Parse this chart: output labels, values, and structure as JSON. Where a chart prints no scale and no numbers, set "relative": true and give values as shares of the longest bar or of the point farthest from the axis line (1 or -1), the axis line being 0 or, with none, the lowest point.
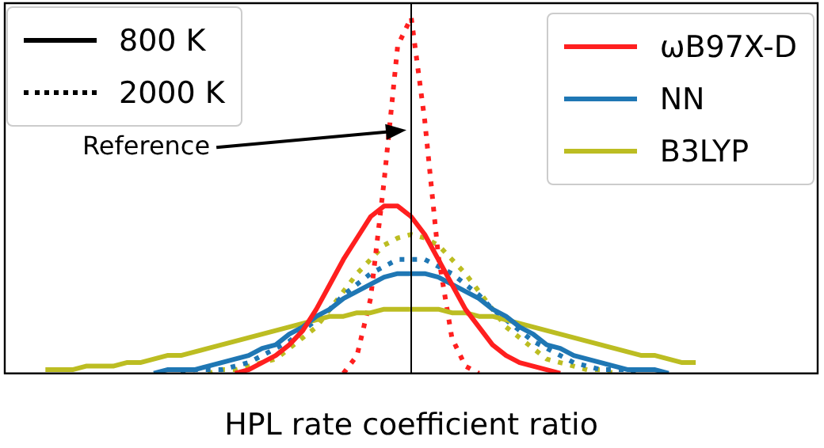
{
  "chart_data": {
    "type": "line",
    "xlabel": "HPL rate coefficient ratio",
    "relative": true,
    "legend": "top right",
    "grid": false,
    "marker": "none",
    "categories": [
      null,
      null,
      null,
      null,
      null,
      null,
      null,
      null,
      null,
      null,
      null,
      null,
      null,
      null,
      null,
      null,
      null,
      null,
      null,
      null,
      null,
      null,
      null,
      null,
      null,
      null,
      null,
      null,
      null,
      null,
      null,
      null,
      null,
      null,
      null,
      null,
      null,
      null,
      null,
      null,
      null,
      null,
      null,
      null,
      null,
      null,
      null,
      null,
      null,
      null,
      null,
      null,
      null,
      null,
      null,
      null,
      null,
      null,
      null,
      null,
      null
    ],
    "annotations": [
      "Reference"
    ],
    "series": [
      {
        "name": "ωB97X-D",
        "color": "#ff1f1f",
        "line_style": "solid",
        "values": [
          null,
          null,
          null,
          null,
          null,
          null,
          null,
          null,
          null,
          null,
          null,
          null,
          null,
          null,
          null,
          null,
          null,
          0,
          0.01,
          0.03,
          0.05,
          0.08,
          0.12,
          0.18,
          0.25,
          0.32,
          0.38,
          0.44,
          0.47,
          0.47,
          0.44,
          0.39,
          0.32,
          0.25,
          0.18,
          0.13,
          0.08,
          0.05,
          0.03,
          0.02,
          0.01,
          0,
          null,
          null,
          null,
          null,
          null,
          null,
          null,
          null,
          null,
          null,
          null,
          null,
          null,
          null,
          null,
          null,
          null,
          null,
          null
        ]
      },
      {
        "name": "NN",
        "color": "#1f77b4",
        "line_style": "solid",
        "values": [
          null,
          null,
          null,
          null,
          null,
          null,
          null,
          null,
          null,
          null,
          null,
          0,
          0.01,
          0.01,
          0.01,
          0.02,
          0.03,
          0.04,
          0.05,
          0.07,
          0.08,
          0.11,
          0.13,
          0.16,
          0.18,
          0.21,
          0.23,
          0.25,
          0.27,
          0.28,
          0.28,
          0.28,
          0.27,
          0.25,
          0.23,
          0.21,
          0.18,
          0.16,
          0.13,
          0.11,
          0.08,
          0.07,
          0.05,
          0.04,
          0.03,
          0.02,
          0.01,
          0.01,
          0.01,
          0,
          null,
          null,
          null,
          null,
          null,
          null,
          null,
          null,
          null,
          null,
          null
        ]
      },
      {
        "name": "B3LYP",
        "color": "#bcbd22",
        "line_style": "solid",
        "values": [
          null,
          null,
          null,
          0.01,
          0.01,
          0.01,
          0.02,
          0.02,
          0.02,
          0.03,
          0.03,
          0.04,
          0.05,
          0.05,
          0.06,
          0.07,
          0.08,
          0.09,
          0.1,
          0.11,
          0.12,
          0.13,
          0.14,
          0.15,
          0.16,
          0.16,
          0.17,
          0.17,
          0.18,
          0.18,
          0.18,
          0.18,
          0.18,
          0.17,
          0.17,
          0.16,
          0.16,
          0.15,
          0.14,
          0.13,
          0.12,
          0.11,
          0.1,
          0.09,
          0.08,
          0.07,
          0.06,
          0.05,
          0.05,
          0.04,
          0.03,
          0.03,
          null,
          null,
          null,
          null,
          null,
          null,
          null,
          null,
          null
        ]
      },
      {
        "color": "#ff1f1f",
        "line_style": "dotted",
        "values": [
          null,
          null,
          null,
          null,
          null,
          null,
          null,
          null,
          null,
          null,
          null,
          null,
          null,
          null,
          null,
          null,
          null,
          null,
          null,
          null,
          null,
          null,
          null,
          null,
          null,
          0,
          0.05,
          0.21,
          0.54,
          0.92,
          1,
          0.71,
          0.33,
          0.1,
          0.02,
          0,
          null,
          null,
          null,
          null,
          null,
          null,
          null,
          null,
          null,
          null,
          null,
          null,
          null,
          null,
          null,
          null,
          null,
          null,
          null,
          null,
          null,
          null,
          null,
          null,
          null
        ]
      },
      {
        "color": "#1f77b4",
        "line_style": "dotted",
        "values": [
          null,
          null,
          null,
          null,
          null,
          null,
          null,
          null,
          null,
          null,
          null,
          null,
          null,
          0,
          0.01,
          0.01,
          0.01,
          0.02,
          0.03,
          0.05,
          0.07,
          0.09,
          0.12,
          0.15,
          0.18,
          0.22,
          0.25,
          0.28,
          0.3,
          0.32,
          0.32,
          0.32,
          0.3,
          0.28,
          0.25,
          0.22,
          0.18,
          0.15,
          0.12,
          0.09,
          0.07,
          0.05,
          0.03,
          0.02,
          0.01,
          0.01,
          0.01,
          0,
          null,
          null,
          null,
          null,
          null,
          null,
          null,
          null,
          null,
          null,
          null,
          null,
          null
        ]
      },
      {
        "color": "#bcbd22",
        "line_style": "dotted",
        "values": [
          null,
          null,
          null,
          null,
          null,
          null,
          null,
          null,
          null,
          null,
          null,
          null,
          null,
          null,
          null,
          0,
          0.01,
          0.01,
          0.02,
          0.03,
          0.04,
          0.07,
          0.1,
          0.13,
          0.18,
          0.23,
          0.28,
          0.32,
          0.36,
          0.38,
          0.39,
          0.38,
          0.36,
          0.32,
          0.28,
          0.23,
          0.18,
          0.13,
          0.1,
          0.07,
          0.04,
          0.03,
          0.02,
          0.01,
          0.01,
          0,
          null,
          null,
          null,
          null,
          null,
          null,
          null,
          null,
          null,
          null,
          null,
          null,
          null,
          null,
          null
        ]
      },
      {
        "name": "800 K",
        "color": "#000000",
        "line_style": "solid",
        "values": [
          null,
          null,
          null,
          null,
          null,
          null,
          null,
          null,
          null,
          null,
          null,
          null,
          null,
          null,
          null,
          null,
          null,
          null,
          null,
          null,
          null,
          null,
          null,
          null,
          null,
          null,
          null,
          null,
          null,
          null,
          null,
          null,
          null,
          null,
          null,
          null,
          null,
          null,
          null,
          null,
          null,
          null,
          null,
          null,
          null,
          null,
          null,
          null,
          null,
          null,
          null,
          null,
          null,
          null,
          null,
          null,
          null,
          null,
          null,
          null,
          null
        ]
      },
      {
        "name": "2000 K",
        "color": "#000000",
        "line_style": "dotted",
        "values": [
          null,
          null,
          null,
          null,
          null,
          null,
          null,
          null,
          null,
          null,
          null,
          null,
          null,
          null,
          null,
          null,
          null,
          null,
          null,
          null,
          null,
          null,
          null,
          null,
          null,
          null,
          null,
          null,
          null,
          null,
          null,
          null,
          null,
          null,
          null,
          null,
          null,
          null,
          null,
          null,
          null,
          null,
          null,
          null,
          null,
          null,
          null,
          null,
          null,
          null,
          null,
          null,
          null,
          null,
          null,
          null,
          null,
          null,
          null,
          null,
          null
        ]
      }
    ]
  }
}
